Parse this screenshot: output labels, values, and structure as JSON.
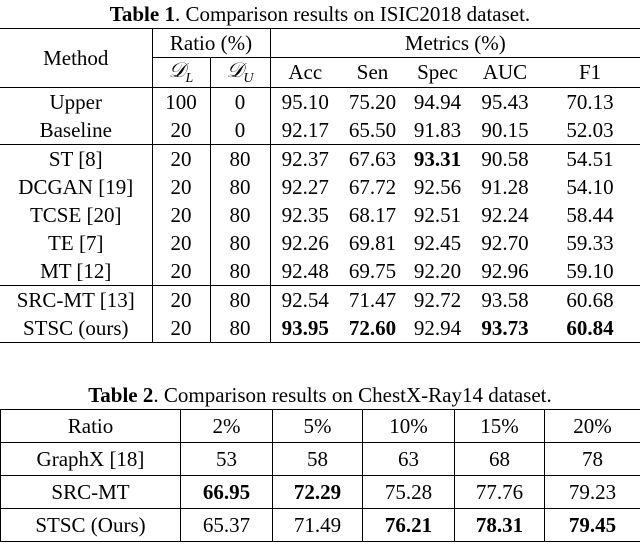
{
  "table1": {
    "caption_label": "Table 1",
    "caption_text": ". Comparison results on ISIC2018 dataset.",
    "header": {
      "method": "Method",
      "ratio": "Ratio (%)",
      "metrics": "Metrics (%)",
      "ratio_columns": [
        {
          "symbol": "𝒟",
          "subscript": "L"
        },
        {
          "symbol": "𝒟",
          "subscript": "U"
        }
      ],
      "metric_columns": [
        "Acc",
        "Sen",
        "Spec",
        "AUC",
        "F1"
      ]
    },
    "rows": [
      [
        "Upper",
        "100",
        "0",
        "95.10",
        "75.20",
        "94.94",
        "95.43",
        "70.13"
      ],
      [
        "Baseline",
        "20",
        "0",
        "92.17",
        "65.50",
        "91.83",
        "90.15",
        "52.03"
      ],
      [
        "ST [8]",
        "20",
        "80",
        "92.37",
        "67.63",
        "93.31",
        "90.58",
        "54.51"
      ],
      [
        "DCGAN [19]",
        "20",
        "80",
        "92.27",
        "67.72",
        "92.56",
        "91.28",
        "54.10"
      ],
      [
        "TCSE [20]",
        "20",
        "80",
        "92.35",
        "68.17",
        "92.51",
        "92.24",
        "58.44"
      ],
      [
        "TE [7]",
        "20",
        "80",
        "92.26",
        "69.81",
        "92.45",
        "92.70",
        "59.33"
      ],
      [
        "MT [12]",
        "20",
        "80",
        "92.48",
        "69.75",
        "92.20",
        "92.96",
        "59.10"
      ],
      [
        "SRC-MT [13]",
        "20",
        "80",
        "92.54",
        "71.47",
        "92.72",
        "93.58",
        "60.68"
      ],
      [
        "STSC (ours)",
        "20",
        "80",
        "93.95",
        "72.60",
        "92.94",
        "93.73",
        "60.84"
      ]
    ],
    "bold": [
      [
        2,
        5
      ],
      [
        8,
        3
      ],
      [
        8,
        4
      ],
      [
        8,
        6
      ],
      [
        8,
        7
      ]
    ]
  },
  "table2": {
    "caption_label": "Table 2",
    "caption_text": ". Comparison results on ChestX-Ray14 dataset.",
    "header": [
      "Ratio",
      "2%",
      "5%",
      "10%",
      "15%",
      "20%"
    ],
    "rows": [
      [
        "GraphX [18]",
        "53",
        "58",
        "63",
        "68",
        "78"
      ],
      [
        "SRC-MT",
        "66.95",
        "72.29",
        "75.28",
        "77.76",
        "79.23"
      ],
      [
        "STSC (Ours)",
        "65.37",
        "71.49",
        "76.21",
        "78.31",
        "79.45"
      ]
    ],
    "bold": [
      [
        1,
        1
      ],
      [
        1,
        2
      ],
      [
        2,
        3
      ],
      [
        2,
        4
      ],
      [
        2,
        5
      ]
    ]
  }
}
